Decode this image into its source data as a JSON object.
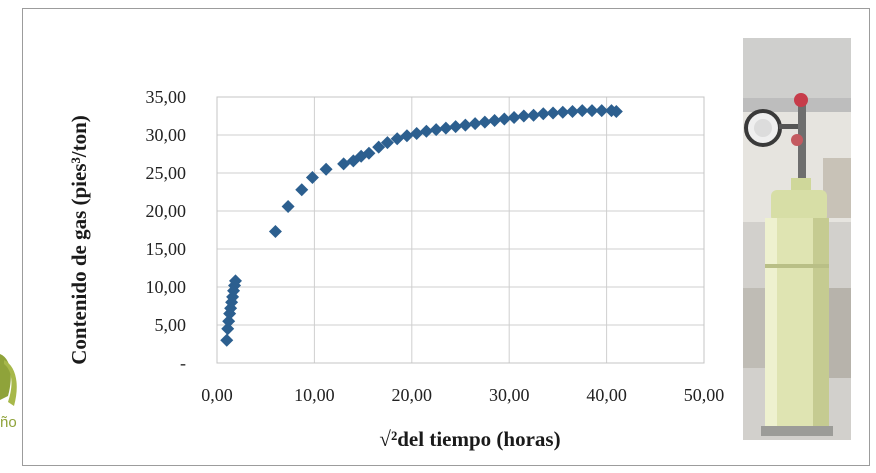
{
  "chart_data": {
    "type": "scatter",
    "title": "",
    "xlabel": "√²del tiempo (horas)",
    "ylabel": "Contenido de gas (pies³/ton)",
    "xlim": [
      0,
      50
    ],
    "ylim": [
      0,
      35
    ],
    "x_ticks": [
      "0,00",
      "10,00",
      "20,00",
      "30,00",
      "40,00",
      "50,00"
    ],
    "y_ticks": [
      "-",
      "5,00",
      "10,00",
      "15,00",
      "20,00",
      "25,00",
      "30,00",
      "35,00"
    ],
    "grid": true,
    "color": "#2c5f8f",
    "series": [
      {
        "marker": "diamond",
        "points": [
          [
            1.0,
            3.0
          ],
          [
            1.1,
            4.5
          ],
          [
            1.2,
            5.5
          ],
          [
            1.3,
            6.5
          ],
          [
            1.4,
            7.2
          ],
          [
            1.5,
            8.0
          ],
          [
            1.6,
            8.7
          ],
          [
            1.7,
            9.5
          ],
          [
            1.8,
            10.2
          ],
          [
            1.9,
            10.8
          ],
          [
            6.0,
            17.3
          ],
          [
            7.3,
            20.6
          ],
          [
            8.7,
            22.8
          ],
          [
            9.8,
            24.4
          ],
          [
            11.2,
            25.5
          ],
          [
            13.0,
            26.2
          ],
          [
            14.0,
            26.6
          ],
          [
            14.8,
            27.2
          ],
          [
            15.6,
            27.6
          ],
          [
            16.6,
            28.4
          ],
          [
            17.5,
            29.0
          ],
          [
            18.5,
            29.5
          ],
          [
            19.5,
            29.9
          ],
          [
            20.5,
            30.2
          ],
          [
            21.5,
            30.5
          ],
          [
            22.5,
            30.7
          ],
          [
            23.5,
            30.9
          ],
          [
            24.5,
            31.1
          ],
          [
            25.5,
            31.3
          ],
          [
            26.5,
            31.5
          ],
          [
            27.5,
            31.7
          ],
          [
            28.5,
            31.9
          ],
          [
            29.5,
            32.1
          ],
          [
            30.5,
            32.3
          ],
          [
            31.5,
            32.5
          ],
          [
            32.5,
            32.6
          ],
          [
            33.5,
            32.8
          ],
          [
            34.5,
            32.9
          ],
          [
            35.5,
            33.0
          ],
          [
            36.5,
            33.1
          ],
          [
            37.5,
            33.2
          ],
          [
            38.5,
            33.2
          ],
          [
            39.5,
            33.2
          ],
          [
            40.5,
            33.2
          ],
          [
            41.0,
            33.1
          ]
        ]
      }
    ]
  },
  "photo": {
    "description_icon": "gas-canister-photo-icon"
  },
  "logo": {
    "fragment_text": "ño",
    "color": "#8fa33a"
  }
}
